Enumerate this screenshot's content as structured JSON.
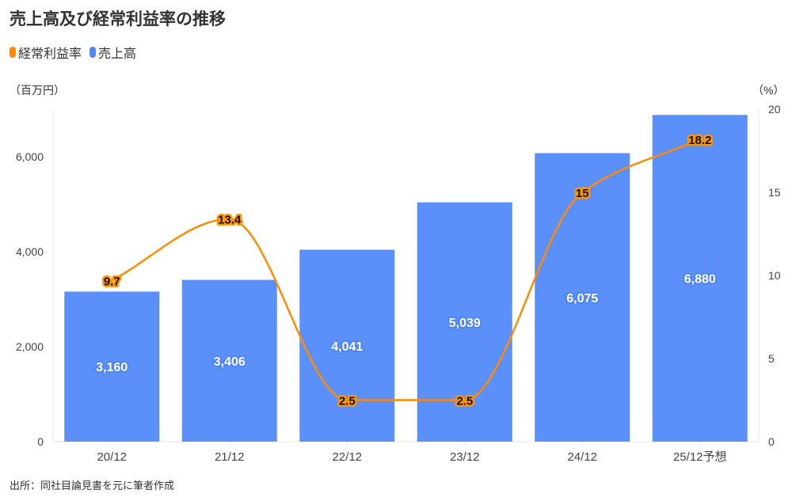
{
  "title": "売上高及び経常利益率の推移",
  "legend": [
    {
      "label": "経常利益率",
      "color": "#ff8c00"
    },
    {
      "label": "売上高",
      "color": "#4f86f7"
    }
  ],
  "units": {
    "left": "（百万円）",
    "right": "（%）"
  },
  "source": "出所：同社目論見書を元に筆者作成",
  "chart_data": {
    "type": "bar+line",
    "title": "売上高及び経常利益率の推移",
    "categories": [
      "20/12",
      "21/12",
      "22/12",
      "23/12",
      "24/12",
      "25/12予想"
    ],
    "series": [
      {
        "name": "売上高",
        "type": "bar",
        "axis": "left",
        "color": "#5b8ff9",
        "values": [
          3160,
          3406,
          4041,
          5039,
          6075,
          6880
        ],
        "labels": [
          "3,160",
          "3,406",
          "4,041",
          "5,039",
          "6,075",
          "6,880"
        ]
      },
      {
        "name": "経常利益率",
        "type": "line",
        "axis": "right",
        "color": "#ff8c00",
        "values": [
          9.7,
          13.4,
          2.5,
          2.5,
          15,
          18.2
        ],
        "labels": [
          "9.7",
          "13.4",
          "2.5",
          "2.5",
          "15",
          "18.2"
        ]
      }
    ],
    "left_axis": {
      "label": "（百万円）",
      "range": [
        0,
        7000
      ],
      "ticks": [
        0,
        2000,
        4000,
        6000
      ],
      "tick_labels": [
        "0",
        "2,000",
        "4,000",
        "6,000"
      ]
    },
    "right_axis": {
      "label": "（%）",
      "range": [
        0,
        20
      ],
      "ticks": [
        0,
        5,
        10,
        15,
        20
      ],
      "tick_labels": [
        "0",
        "5",
        "10",
        "15",
        "20"
      ]
    },
    "grid": false,
    "legend_position": "top-left"
  }
}
